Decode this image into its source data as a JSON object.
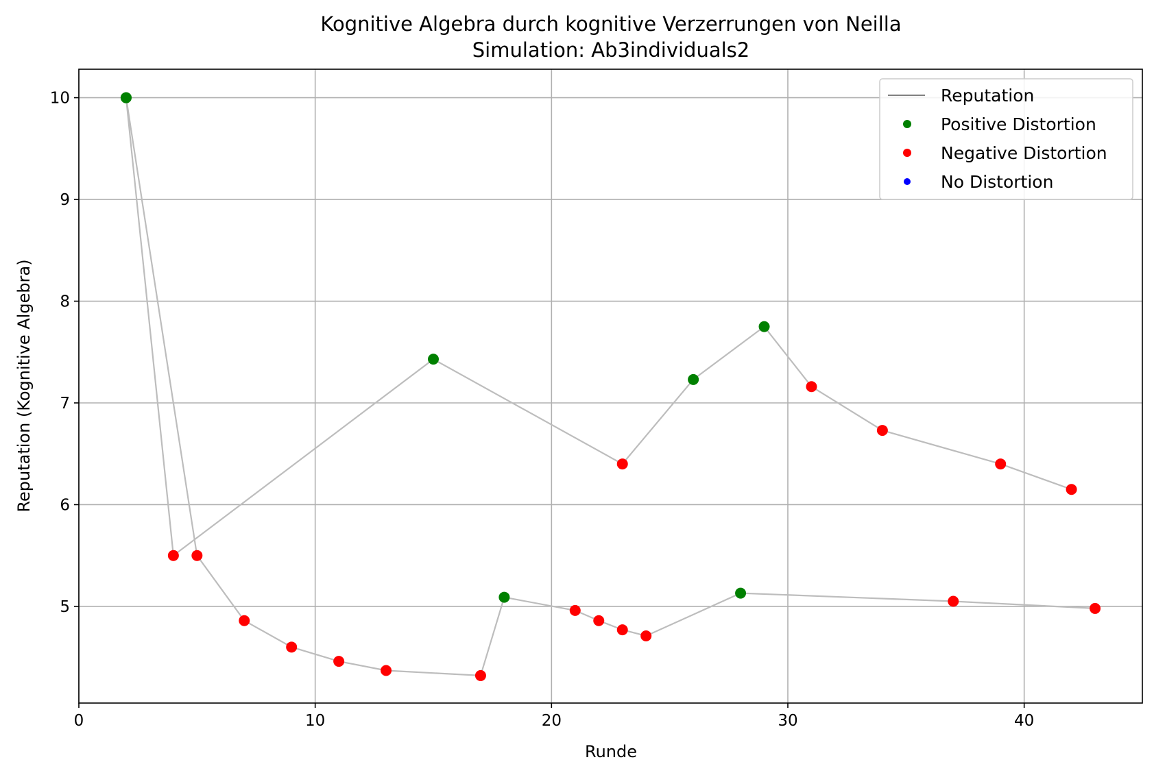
{
  "chart_data": {
    "type": "scatter",
    "title": "Kognitive Algebra durch kognitive Verzerrungen von Neilla",
    "subtitle": "Simulation: Ab3individuals2",
    "xlabel": "Runde",
    "ylabel": "Reputation (Kognitive Algebra)",
    "xlim": [
      0,
      45
    ],
    "ylim": [
      4.05,
      10.28
    ],
    "xticks": [
      0,
      10,
      20,
      30,
      40
    ],
    "yticks": [
      5,
      6,
      7,
      8,
      9,
      10
    ],
    "grid": true,
    "legend_position": "top-right",
    "legend": [
      {
        "label": "Reputation",
        "kind": "line",
        "color": "#808080"
      },
      {
        "label": "Positive Distortion",
        "kind": "marker",
        "color": "#008000"
      },
      {
        "label": "Negative Distortion",
        "kind": "marker",
        "color": "#ff0000"
      },
      {
        "label": "No Distortion",
        "kind": "marker",
        "color": "#0000ff"
      }
    ],
    "colors": {
      "positive": "#008000",
      "negative": "#ff0000",
      "none": "#0000ff",
      "line": "#bdbdbd"
    },
    "series": [
      {
        "points": [
          {
            "x": 2,
            "y": 10.0,
            "d": "positive"
          },
          {
            "x": 4,
            "y": 5.5,
            "d": "negative"
          },
          {
            "x": 15,
            "y": 7.43,
            "d": "positive"
          },
          {
            "x": 23,
            "y": 6.4,
            "d": "negative"
          },
          {
            "x": 26,
            "y": 7.23,
            "d": "positive"
          },
          {
            "x": 29,
            "y": 7.75,
            "d": "positive"
          },
          {
            "x": 31,
            "y": 7.16,
            "d": "negative"
          },
          {
            "x": 34,
            "y": 6.73,
            "d": "negative"
          },
          {
            "x": 39,
            "y": 6.4,
            "d": "negative"
          },
          {
            "x": 42,
            "y": 6.15,
            "d": "negative"
          }
        ]
      },
      {
        "points": [
          {
            "x": 2,
            "y": 10.0,
            "d": "positive"
          },
          {
            "x": 5,
            "y": 5.5,
            "d": "negative"
          },
          {
            "x": 7,
            "y": 4.86,
            "d": "negative"
          },
          {
            "x": 9,
            "y": 4.6,
            "d": "negative"
          },
          {
            "x": 11,
            "y": 4.46,
            "d": "negative"
          },
          {
            "x": 13,
            "y": 4.37,
            "d": "negative"
          },
          {
            "x": 17,
            "y": 4.32,
            "d": "negative"
          },
          {
            "x": 18,
            "y": 5.09,
            "d": "positive"
          },
          {
            "x": 21,
            "y": 4.96,
            "d": "negative"
          },
          {
            "x": 22,
            "y": 4.86,
            "d": "negative"
          },
          {
            "x": 23,
            "y": 4.77,
            "d": "negative"
          },
          {
            "x": 24,
            "y": 4.71,
            "d": "negative"
          },
          {
            "x": 28,
            "y": 5.13,
            "d": "positive"
          },
          {
            "x": 37,
            "y": 5.05,
            "d": "negative"
          },
          {
            "x": 43,
            "y": 4.98,
            "d": "negative"
          }
        ]
      }
    ]
  }
}
